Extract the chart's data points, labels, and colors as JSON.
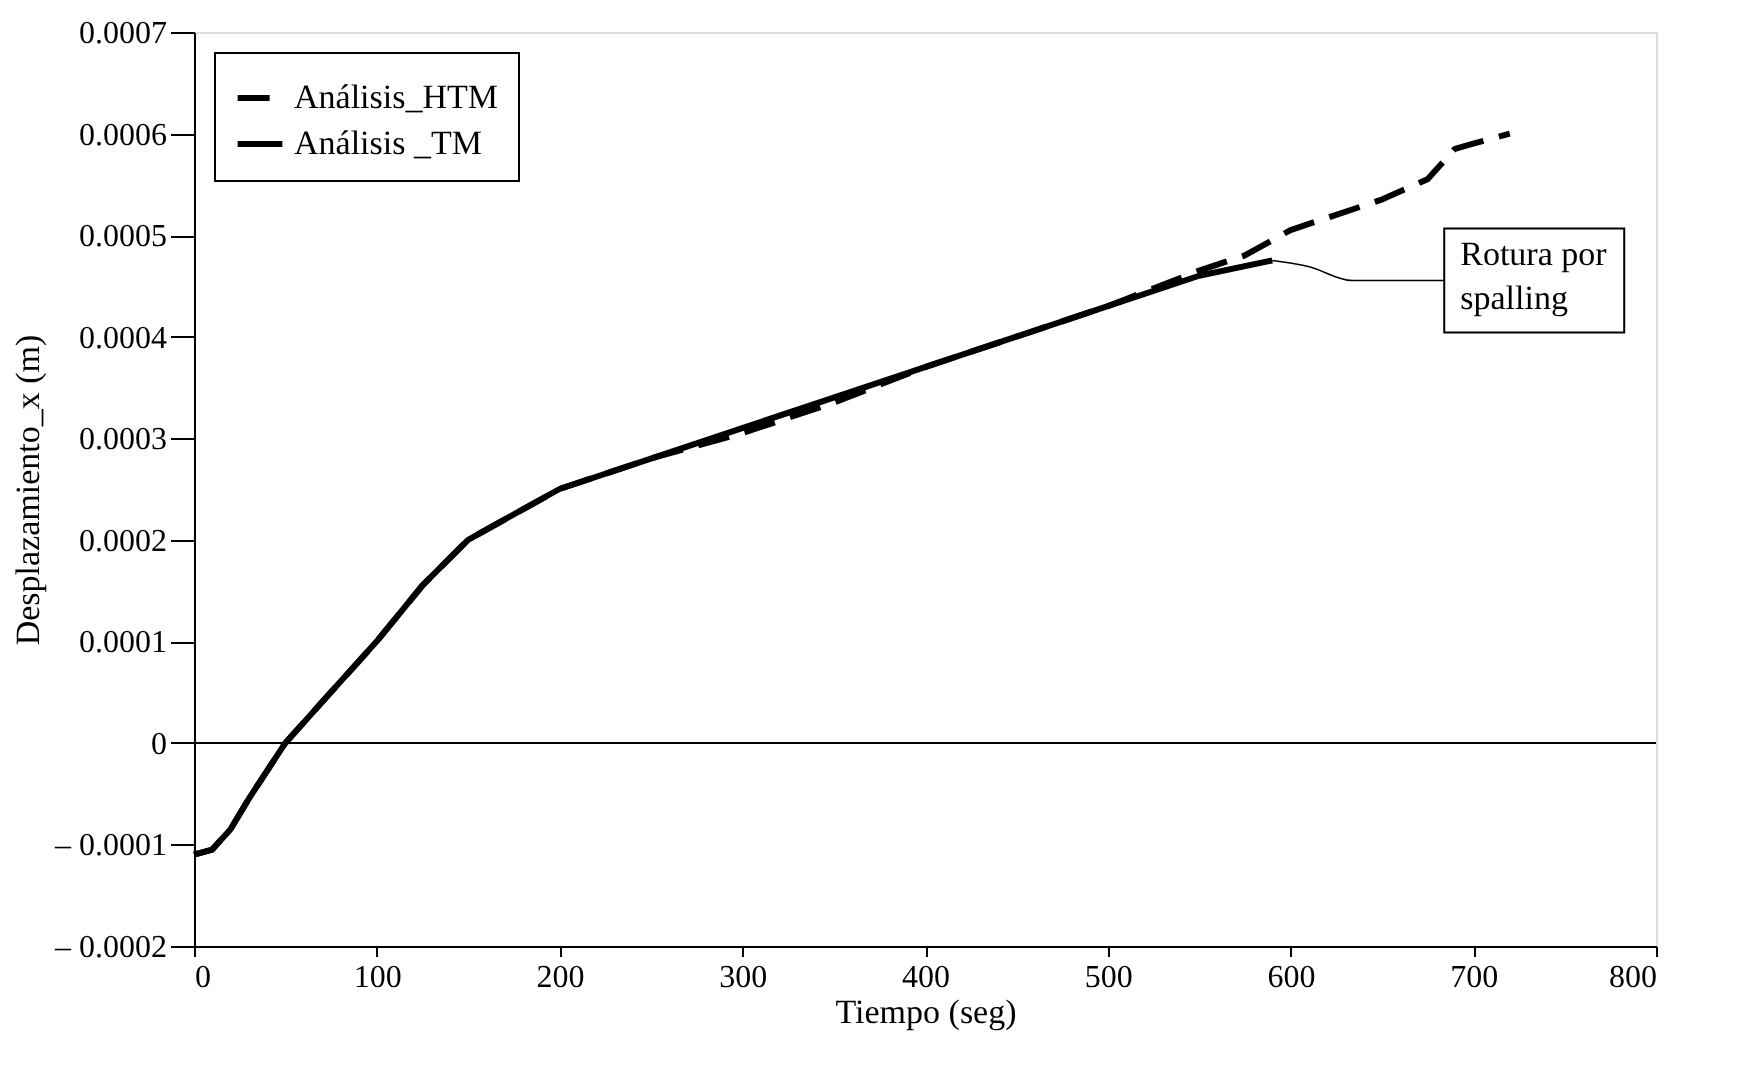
{
  "chart_data": {
    "type": "line",
    "xlabel": "Tiempo (seg)",
    "ylabel": "Desplazamiento_x (m)",
    "xlim": [
      0,
      800
    ],
    "xticks": [
      0,
      100,
      200,
      300,
      400,
      500,
      600,
      700,
      800
    ],
    "ylim": [
      -0.0002,
      0.0007
    ],
    "yticks": [
      {
        "value": -0.0002,
        "label": "– 0.0002"
      },
      {
        "value": -0.0001,
        "label": "– 0.0001"
      },
      {
        "value": 0,
        "label": "0"
      },
      0.0001,
      0.0002,
      0.0003,
      0.0004,
      0.0005,
      0.0006,
      0.0007
    ],
    "series": [
      {
        "name": "Análisis_HTM",
        "color": "#000000",
        "line_style": "dashed",
        "x": [
          0,
          10,
          20,
          30,
          50,
          75,
          100,
          125,
          150,
          175,
          200,
          250,
          300,
          350,
          400,
          450,
          500,
          550,
          575,
          600,
          625,
          650,
          675,
          690,
          700,
          720
        ],
        "values": [
          -0.00011,
          -0.000105,
          -8.5e-05,
          -5.5e-05,
          0,
          5e-05,
          0.0001,
          0.000155,
          0.0002,
          0.000225,
          0.00025,
          0.00028,
          0.000305,
          0.000335,
          0.00037,
          0.0004,
          0.00043,
          0.000465,
          0.00048,
          0.000505,
          0.00052,
          0.000535,
          0.000555,
          0.000585,
          0.00059,
          0.0006
        ]
      },
      {
        "name": "Análisis _TM",
        "color": "#000000",
        "line_style": "solid",
        "x": [
          0,
          10,
          20,
          30,
          50,
          75,
          100,
          125,
          150,
          175,
          200,
          250,
          300,
          350,
          400,
          450,
          500,
          550,
          590
        ],
        "values": [
          -0.00011,
          -0.000105,
          -8.5e-05,
          -5.5e-05,
          0,
          5e-05,
          0.0001,
          0.000155,
          0.0002,
          0.000225,
          0.00025,
          0.00028,
          0.00031,
          0.00034,
          0.00037,
          0.0004,
          0.00043,
          0.00046,
          0.000475
        ]
      }
    ],
    "ref_lines": [
      {
        "axis": "y",
        "value": 0,
        "color": "#000000"
      }
    ],
    "annotations": [
      {
        "text": "Rotura por\nspalling",
        "x": 590,
        "y": 0.000475
      }
    ],
    "legend": "top left",
    "grid": false,
    "marker": "none"
  }
}
